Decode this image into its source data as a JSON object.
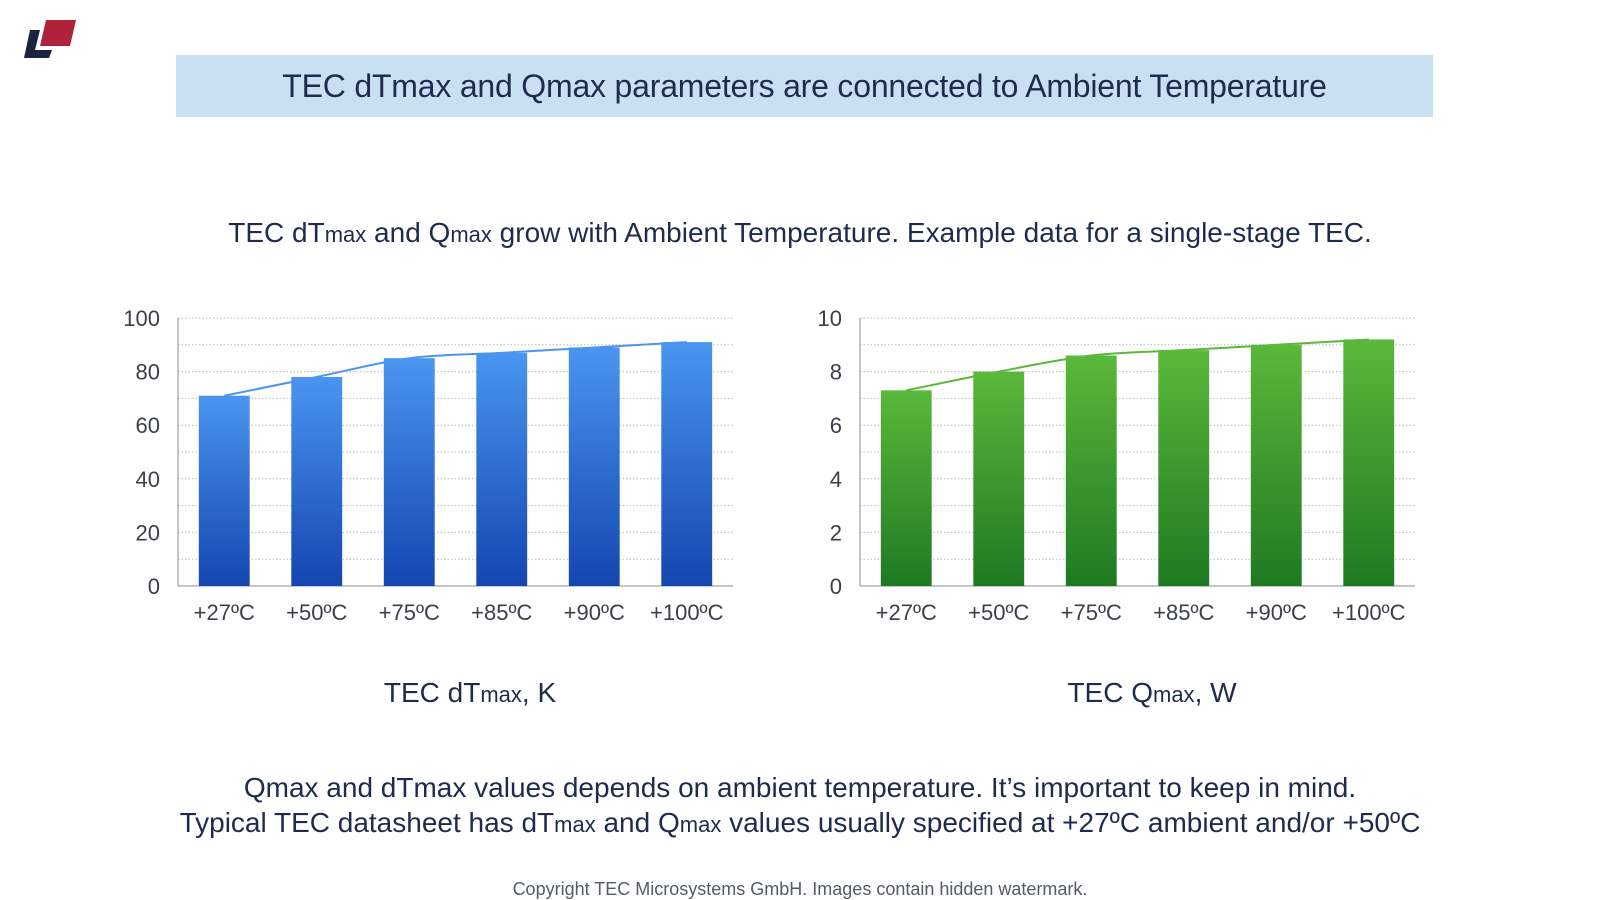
{
  "title": "TEC dTmax and Qmax parameters are connected to Ambient Temperature",
  "subtitle": {
    "part1": "TEC dT",
    "sub1": "max",
    "part2": " and Q",
    "sub2": "max",
    "part3": " grow with Ambient Temperature. Example data for a single-stage TEC."
  },
  "colors": {
    "banner": "#c9e0f3",
    "text": "#1f2b4d",
    "blue_top": "#4a95f0",
    "blue_bottom": "#1446b0",
    "green_top": "#5ab83a",
    "green_bottom": "#1e7a22",
    "logo_dark": "#1a2340",
    "logo_red": "#b0213a"
  },
  "chart_data": [
    {
      "type": "bar",
      "title": "TEC dTmax, K",
      "caption": {
        "main": "TEC dT",
        "sub": "max",
        "tail": ", K"
      },
      "categories": [
        "+27ºC",
        "+50ºC",
        "+75ºC",
        "+85ºC",
        "+90ºC",
        "+100ºC"
      ],
      "values": [
        71,
        78,
        85,
        87,
        89,
        91
      ],
      "trendline": true,
      "ylim": [
        0,
        100
      ],
      "yticks": [
        0,
        20,
        40,
        60,
        80,
        100
      ],
      "grid": true,
      "xlabel": "",
      "ylabel": ""
    },
    {
      "type": "bar",
      "title": "TEC Qmax, W",
      "caption": {
        "main": "TEC Q",
        "sub": "max",
        "tail": ", W"
      },
      "categories": [
        "+27ºC",
        "+50ºC",
        "+75ºC",
        "+85ºC",
        "+90ºC",
        "+100ºC"
      ],
      "values": [
        7.3,
        8.0,
        8.6,
        8.8,
        9.0,
        9.2
      ],
      "trendline": true,
      "ylim": [
        0,
        10
      ],
      "yticks": [
        0,
        2,
        4,
        6,
        8,
        10
      ],
      "grid": true,
      "xlabel": "",
      "ylabel": ""
    }
  ],
  "note1": "Qmax and dTmax values depends on ambient temperature. It’s important to keep in mind.",
  "note2": {
    "part1": "Typical TEC datasheet has dT",
    "sub1": "max",
    "part2": " and Q",
    "sub2": "max",
    "part3": " values usually specified at +27ºC ambient and/or +50ºC"
  },
  "copyright": "Copyright TEC Microsystems GmbH. Images contain hidden watermark."
}
